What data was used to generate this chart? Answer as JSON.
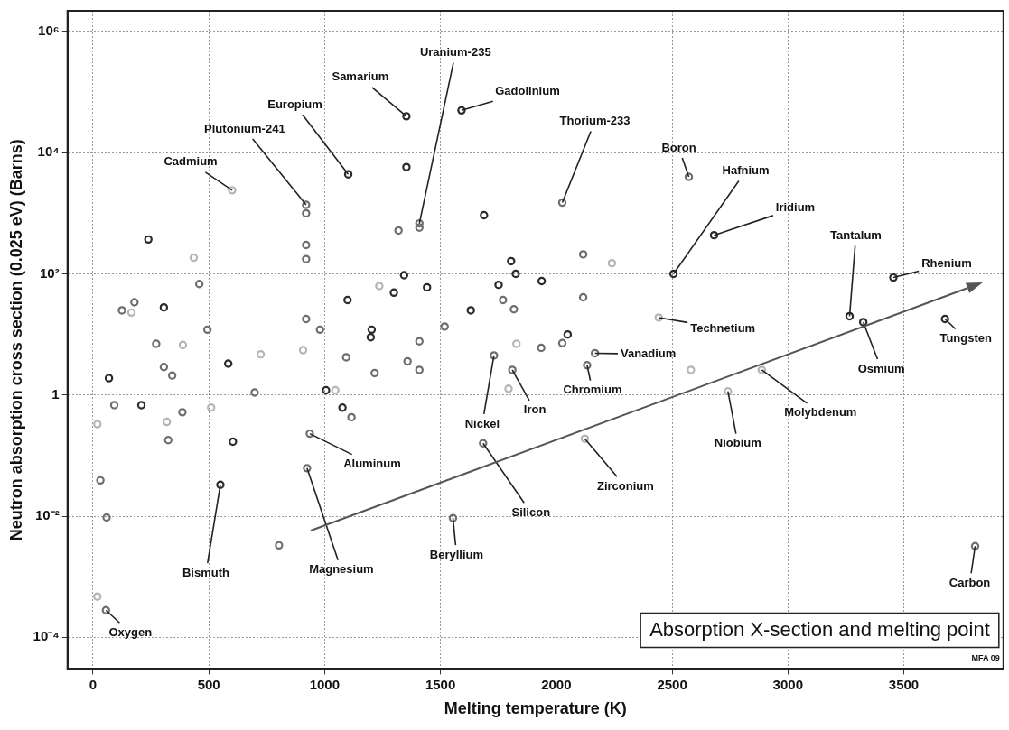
{
  "chart_data": {
    "type": "scatter",
    "title": "Absorption X-section and melting point",
    "xlabel": "Melting temperature (K)",
    "ylabel": "Neutron absorption cross section (0.025 eV) (Barns)",
    "log": "y",
    "grid": true,
    "legend": false,
    "marker": "circle",
    "xlim": [
      -110,
      3930
    ],
    "xticks": [
      0,
      500,
      1000,
      1500,
      2000,
      2500,
      3000,
      3500
    ],
    "ylim": [
      3e-05,
      2200000
    ],
    "yticks": [
      {
        "value": 0.0001,
        "label": "10⁻⁴"
      },
      {
        "value": 0.01,
        "label": "10⁻²"
      },
      1,
      {
        "value": 100,
        "label": "10²"
      },
      {
        "value": 10000,
        "label": "10⁴"
      },
      {
        "value": 1000000,
        "label": "10⁶"
      }
    ],
    "series": [
      {
        "x": [
          1353,
          1591,
          1102,
          920,
          601,
          1409,
          2026,
          2572,
          2506,
          2681,
          3266,
          3455,
          2442,
          3678,
          3325,
          2167,
          2133,
          2887,
          2741,
          2123,
          3808,
          1731,
          1810,
          1684,
          936,
          924,
          550,
          1554,
          56,
          1353,
          920,
          920,
          920,
          1688,
          1319,
          1409,
          239,
          435,
          459,
          1805,
          1825,
          1343,
          1751,
          1236,
          1442,
          1299,
          1770,
          1817,
          1631,
          1099,
          179,
          125,
          166,
          306,
          920,
          494,
          980,
          1203,
          1199,
          1518,
          1409,
          273,
          388,
          1828,
          2116,
          2240,
          1937,
          2116,
          2049,
          2026,
          1935,
          2581,
          306,
          342,
          69,
          584,
          724,
          907,
          1093,
          1358,
          1409,
          1216,
          1794,
          1006,
          1046,
          698,
          1077,
          1116,
          92,
          209,
          386,
          510,
          319,
          19,
          325,
          604,
          32,
          59,
          803,
          19
        ],
        "values": [
          40000,
          50000,
          4400,
          1380,
          2400,
          680,
          1500,
          4000,
          100,
          435,
          20,
          87,
          19,
          18,
          16,
          4.9,
          3.1,
          2.6,
          1.15,
          0.19,
          0.0032,
          4.5,
          2.6,
          0.16,
          0.23,
          0.062,
          0.033,
          0.0093,
          0.00028,
          5800,
          1000,
          300,
          175,
          930,
          520,
          580,
          370,
          185,
          68,
          162,
          100,
          95,
          66,
          63,
          60,
          49,
          37,
          26,
          25,
          37,
          34,
          25,
          23,
          28,
          18,
          12,
          12,
          12,
          9,
          13.5,
          7.7,
          7,
          6.7,
          7,
          210,
          150,
          76,
          41,
          10,
          7.2,
          6,
          2.6,
          2.9,
          2.1,
          1.9,
          3.3,
          4.7,
          5.5,
          4.2,
          3.6,
          2.6,
          2.3,
          1.27,
          1.2,
          1.2,
          1.1,
          0.62,
          0.43,
          0.68,
          0.68,
          0.52,
          0.62,
          0.36,
          0.33,
          0.18,
          0.17,
          0.039,
          0.0095,
          0.0033,
          0.00047
        ],
        "colors": [
          "#2b2b2b",
          "#2b2b2b",
          "#2b2b2b",
          "#6e6e6e",
          "#b5b5b5",
          "#6e6e6e",
          "#6e6e6e",
          "#6e6e6e",
          "#2b2b2b",
          "#2b2b2b",
          "#2b2b2b",
          "#2b2b2b",
          "#b5b5b5",
          "#2b2b2b",
          "#2b2b2b",
          "#6e6e6e",
          "#6e6e6e",
          "#b5b5b5",
          "#b5b5b5",
          "#b5b5b5",
          "#6e6e6e",
          "#6e6e6e",
          "#6e6e6e",
          "#6e6e6e",
          "#6e6e6e",
          "#6e6e6e",
          "#2b2b2b",
          "#6e6e6e",
          "#6e6e6e",
          "#2b2b2b",
          "#6e6e6e",
          "#6e6e6e",
          "#6e6e6e",
          "#2b2b2b",
          "#6e6e6e",
          "#6e6e6e",
          "#2b2b2b",
          "#b5b5b5",
          "#6e6e6e",
          "#2b2b2b",
          "#2b2b2b",
          "#2b2b2b",
          "#2b2b2b",
          "#b5b5b5",
          "#2b2b2b",
          "#2b2b2b",
          "#6e6e6e",
          "#6e6e6e",
          "#2b2b2b",
          "#2b2b2b",
          "#6e6e6e",
          "#6e6e6e",
          "#b5b5b5",
          "#2b2b2b",
          "#6e6e6e",
          "#6e6e6e",
          "#6e6e6e",
          "#2b2b2b",
          "#2b2b2b",
          "#6e6e6e",
          "#6e6e6e",
          "#6e6e6e",
          "#b5b5b5",
          "#b5b5b5",
          "#6e6e6e",
          "#b5b5b5",
          "#2b2b2b",
          "#6e6e6e",
          "#2b2b2b",
          "#6e6e6e",
          "#6e6e6e",
          "#b5b5b5",
          "#6e6e6e",
          "#6e6e6e",
          "#2b2b2b",
          "#2b2b2b",
          "#b5b5b5",
          "#b5b5b5",
          "#6e6e6e",
          "#6e6e6e",
          "#6e6e6e",
          "#6e6e6e",
          "#b5b5b5",
          "#2b2b2b",
          "#b5b5b5",
          "#6e6e6e",
          "#2b2b2b",
          "#6e6e6e",
          "#6e6e6e",
          "#2b2b2b",
          "#6e6e6e",
          "#b5b5b5",
          "#b5b5b5",
          "#b5b5b5",
          "#6e6e6e",
          "#2b2b2b",
          "#6e6e6e",
          "#6e6e6e",
          "#6e6e6e",
          "#b5b5b5"
        ]
      }
    ],
    "annotations": [
      {
        "text": "Samarium",
        "x": 1353,
        "y": 40000
      },
      {
        "text": "Gadolinium",
        "x": 1591,
        "y": 50000
      },
      {
        "text": "Europium",
        "x": 1102,
        "y": 4400
      },
      {
        "text": "Plutonium-241",
        "x": 920,
        "y": 1380
      },
      {
        "text": "Cadmium",
        "x": 601,
        "y": 2400
      },
      {
        "text": "Uranium-235",
        "x": 1409,
        "y": 680
      },
      {
        "text": "Thorium-233",
        "x": 2026,
        "y": 1500
      },
      {
        "text": "Boron",
        "x": 2572,
        "y": 4000
      },
      {
        "text": "Hafnium",
        "x": 2506,
        "y": 100
      },
      {
        "text": "Iridium",
        "x": 2681,
        "y": 435
      },
      {
        "text": "Tantalum",
        "x": 3266,
        "y": 20
      },
      {
        "text": "Rhenium",
        "x": 3455,
        "y": 87
      },
      {
        "text": "Technetium",
        "x": 2442,
        "y": 19
      },
      {
        "text": "Tungsten",
        "x": 3678,
        "y": 18
      },
      {
        "text": "Osmium",
        "x": 3325,
        "y": 16
      },
      {
        "text": "Vanadium",
        "x": 2167,
        "y": 4.9
      },
      {
        "text": "Chromium",
        "x": 2133,
        "y": 3.1
      },
      {
        "text": "Molybdenum",
        "x": 2887,
        "y": 2.6
      },
      {
        "text": "Niobium",
        "x": 2741,
        "y": 1.15
      },
      {
        "text": "Zirconium",
        "x": 2123,
        "y": 0.19
      },
      {
        "text": "Carbon",
        "x": 3808,
        "y": 0.0032
      },
      {
        "text": "Nickel",
        "x": 1731,
        "y": 4.5
      },
      {
        "text": "Iron",
        "x": 1810,
        "y": 2.6
      },
      {
        "text": "Silicon",
        "x": 1684,
        "y": 0.16
      },
      {
        "text": "Aluminum",
        "x": 936,
        "y": 0.23
      },
      {
        "text": "Magnesium",
        "x": 924,
        "y": 0.062
      },
      {
        "text": "Bismuth",
        "x": 550,
        "y": 0.033
      },
      {
        "text": "Beryllium",
        "x": 1554,
        "y": 0.0093
      },
      {
        "text": "Oxygen",
        "x": 56,
        "y": 0.00028
      },
      "MFA 09"
    ]
  }
}
